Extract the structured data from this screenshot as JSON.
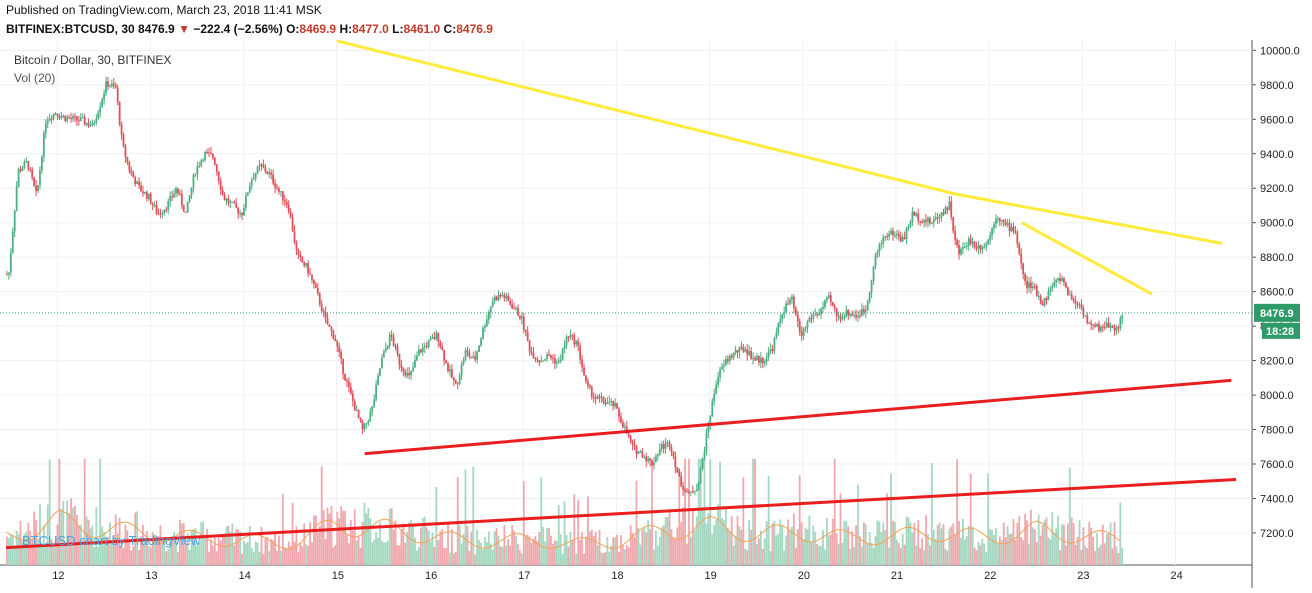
{
  "header": {
    "published": "Published on TradingView.com, March 23, 2018 11:41 MSK",
    "symbol": "BITFINEX:BTCUSD, 30",
    "last": "8476.9",
    "arrow": "▼",
    "change": "−222.4 (−2.56%)",
    "o_label": "O:",
    "o_value": "8469.9",
    "h_label": "H:",
    "h_value": "8477.0",
    "l_label": "L:",
    "l_value": "8461.0",
    "c_label": "C:",
    "c_value": "8476.9"
  },
  "chart_data": {
    "type": "candlestick",
    "title": "Bitcoin / Dollar, 30, BITFINEX",
    "volume_label": "Vol (20)",
    "watermark": "BTCUSD chart by TradingView",
    "x_tick_labels": [
      "12",
      "13",
      "14",
      "15",
      "16",
      "17",
      "18",
      "19",
      "20",
      "21",
      "22",
      "23",
      "24"
    ],
    "x_range": [
      11.45,
      24.8
    ],
    "y_ticks": [
      7200,
      7400,
      7600,
      7800,
      8000,
      8200,
      8400,
      8600,
      8800,
      9000,
      9200,
      9400,
      9600,
      9800,
      10000
    ],
    "y_tick_labels": [
      "7200.0",
      "7400.0",
      "7600.0",
      "7800.0",
      "8000.0",
      "8200.0",
      "8400.0",
      "8600.0",
      "8800.0",
      "9000.0",
      "9200.0",
      "9400.0",
      "9600.0",
      "9800.0",
      "10000.0"
    ],
    "y_range": [
      7130,
      10060
    ],
    "last_price": 8476.9,
    "last_price_label": "8476.9",
    "countdown_label": "18:28",
    "price_path": [
      [
        11.5,
        8700
      ],
      [
        11.6,
        9300
      ],
      [
        11.7,
        9350
      ],
      [
        11.8,
        9150
      ],
      [
        11.9,
        9600
      ],
      [
        12.0,
        9640
      ],
      [
        12.1,
        9610
      ],
      [
        12.2,
        9600
      ],
      [
        12.3,
        9590
      ],
      [
        12.4,
        9560
      ],
      [
        12.5,
        9720
      ],
      [
        12.55,
        9810
      ],
      [
        12.65,
        9780
      ],
      [
        12.72,
        9450
      ],
      [
        12.8,
        9300
      ],
      [
        12.9,
        9200
      ],
      [
        13.0,
        9150
      ],
      [
        13.1,
        9050
      ],
      [
        13.2,
        9100
      ],
      [
        13.3,
        9200
      ],
      [
        13.4,
        9050
      ],
      [
        13.5,
        9300
      ],
      [
        13.6,
        9400
      ],
      [
        13.7,
        9380
      ],
      [
        13.8,
        9150
      ],
      [
        13.9,
        9100
      ],
      [
        14.0,
        9050
      ],
      [
        14.1,
        9250
      ],
      [
        14.2,
        9330
      ],
      [
        14.3,
        9280
      ],
      [
        14.4,
        9180
      ],
      [
        14.5,
        9100
      ],
      [
        14.6,
        8800
      ],
      [
        14.7,
        8740
      ],
      [
        14.8,
        8600
      ],
      [
        14.85,
        8520
      ],
      [
        14.9,
        8430
      ],
      [
        15.0,
        8330
      ],
      [
        15.1,
        8120
      ],
      [
        15.2,
        7950
      ],
      [
        15.3,
        7790
      ],
      [
        15.4,
        7920
      ],
      [
        15.5,
        8200
      ],
      [
        15.6,
        8350
      ],
      [
        15.7,
        8180
      ],
      [
        15.8,
        8100
      ],
      [
        15.9,
        8250
      ],
      [
        16.0,
        8300
      ],
      [
        16.1,
        8350
      ],
      [
        16.2,
        8170
      ],
      [
        16.3,
        8050
      ],
      [
        16.4,
        8250
      ],
      [
        16.5,
        8200
      ],
      [
        16.6,
        8400
      ],
      [
        16.7,
        8560
      ],
      [
        16.8,
        8580
      ],
      [
        16.9,
        8520
      ],
      [
        17.0,
        8450
      ],
      [
        17.1,
        8250
      ],
      [
        17.2,
        8200
      ],
      [
        17.3,
        8230
      ],
      [
        17.4,
        8180
      ],
      [
        17.5,
        8350
      ],
      [
        17.6,
        8300
      ],
      [
        17.7,
        8050
      ],
      [
        17.8,
        7980
      ],
      [
        17.9,
        7960
      ],
      [
        18.0,
        7940
      ],
      [
        18.1,
        7820
      ],
      [
        18.2,
        7690
      ],
      [
        18.3,
        7660
      ],
      [
        18.4,
        7600
      ],
      [
        18.5,
        7700
      ],
      [
        18.6,
        7720
      ],
      [
        18.7,
        7500
      ],
      [
        18.8,
        7420
      ],
      [
        18.9,
        7480
      ],
      [
        19.0,
        7800
      ],
      [
        19.1,
        8100
      ],
      [
        19.2,
        8200
      ],
      [
        19.3,
        8250
      ],
      [
        19.4,
        8270
      ],
      [
        19.5,
        8210
      ],
      [
        19.6,
        8200
      ],
      [
        19.7,
        8280
      ],
      [
        19.8,
        8480
      ],
      [
        19.9,
        8560
      ],
      [
        20.0,
        8340
      ],
      [
        20.1,
        8450
      ],
      [
        20.2,
        8480
      ],
      [
        20.3,
        8560
      ],
      [
        20.4,
        8450
      ],
      [
        20.5,
        8480
      ],
      [
        20.6,
        8460
      ],
      [
        20.7,
        8500
      ],
      [
        20.8,
        8800
      ],
      [
        20.9,
        8930
      ],
      [
        21.0,
        8940
      ],
      [
        21.1,
        8900
      ],
      [
        21.2,
        9050
      ],
      [
        21.3,
        9020
      ],
      [
        21.4,
        9000
      ],
      [
        21.5,
        9050
      ],
      [
        21.6,
        9110
      ],
      [
        21.65,
        8900
      ],
      [
        21.7,
        8820
      ],
      [
        21.8,
        8900
      ],
      [
        21.9,
        8860
      ],
      [
        22.0,
        8880
      ],
      [
        22.1,
        9050
      ],
      [
        22.2,
        8980
      ],
      [
        22.3,
        8960
      ],
      [
        22.4,
        8650
      ],
      [
        22.5,
        8620
      ],
      [
        22.6,
        8530
      ],
      [
        22.7,
        8640
      ],
      [
        22.8,
        8680
      ],
      [
        22.9,
        8560
      ],
      [
        23.0,
        8520
      ],
      [
        23.1,
        8400
      ],
      [
        23.2,
        8390
      ],
      [
        23.3,
        8410
      ],
      [
        23.4,
        8380
      ],
      [
        23.45,
        8476.9
      ]
    ],
    "volume_path": [
      [
        11.5,
        0.3
      ],
      [
        12.0,
        0.45
      ],
      [
        12.5,
        0.38
      ],
      [
        13.0,
        0.32
      ],
      [
        13.5,
        0.28
      ],
      [
        14.0,
        0.26
      ],
      [
        14.5,
        0.22
      ],
      [
        15.0,
        0.42
      ],
      [
        15.5,
        0.38
      ],
      [
        16.0,
        0.3
      ],
      [
        16.5,
        0.24
      ],
      [
        17.0,
        0.26
      ],
      [
        17.5,
        0.22
      ],
      [
        18.0,
        0.24
      ],
      [
        18.5,
        0.36
      ],
      [
        19.0,
        0.4
      ],
      [
        19.5,
        0.32
      ],
      [
        20.0,
        0.34
      ],
      [
        20.5,
        0.28
      ],
      [
        21.0,
        0.3
      ],
      [
        21.5,
        0.34
      ],
      [
        22.0,
        0.28
      ],
      [
        22.5,
        0.36
      ],
      [
        23.0,
        0.3
      ],
      [
        23.45,
        0.26
      ]
    ],
    "trendlines": [
      {
        "color": "#FFEB3B",
        "from": [
          15.0,
          10055
        ],
        "to": [
          21.65,
          9165
        ]
      },
      {
        "color": "#FFEB3B",
        "from": [
          21.65,
          9165
        ],
        "to": [
          24.5,
          8880
        ]
      },
      {
        "color": "#FFEB3B",
        "from": [
          22.35,
          9000
        ],
        "to": [
          23.75,
          8585
        ]
      },
      {
        "color": "#E91E1E",
        "from": [
          15.3,
          7660
        ],
        "to": [
          24.6,
          8085
        ]
      },
      {
        "color": "#E91E1E",
        "from": [
          11.45,
          7115
        ],
        "to": [
          24.65,
          7510
        ]
      }
    ],
    "colors": {
      "up": "#4CAF81",
      "down": "#E0505A",
      "volume_up": "#A5D8C0",
      "volume_down": "#F0A8AE",
      "volume_ma": "#F5A352",
      "grid": "#EEF0F3",
      "price_line": "#2E9A6A",
      "watermark": "#4AA3DF"
    }
  }
}
